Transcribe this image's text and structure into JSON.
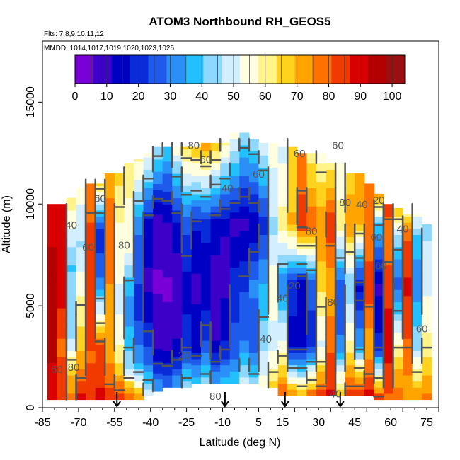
{
  "chart_data": {
    "type": "heatmap",
    "title": "ATOM3 Northbound RH_GEOS5",
    "subtitle_flights": "Flts: 7,8,9,10,11,12",
    "subtitle_dates": "MMDD: 1014,1017,1019,1020,1023,1025",
    "xlabel": "Latitude (deg N)",
    "ylabel": "Altitude (m)",
    "xlim": [
      -85,
      80
    ],
    "ylim": [
      0,
      18000
    ],
    "x_ticks": [
      -85,
      -70,
      -55,
      -40,
      -25,
      -10,
      5,
      15,
      30,
      45,
      60,
      75
    ],
    "y_ticks": [
      0,
      5000,
      10000,
      15000
    ],
    "colorbar": {
      "min": 0,
      "max": 104,
      "ticks": [
        0,
        10,
        20,
        30,
        40,
        50,
        60,
        70,
        80,
        90,
        100
      ],
      "colors": [
        "#7A00D8",
        "#3C00C8",
        "#0000C4",
        "#0A2CD8",
        "#1E5BEB",
        "#2A8FF6",
        "#22C0FF",
        "#8ED8FF",
        "#D2EEFF",
        "#FFFFE0",
        "#FFF38A",
        "#FFD21E",
        "#FFA400",
        "#FF7200",
        "#F03A00",
        "#D80000",
        "#B30000",
        "#9A1010"
      ]
    },
    "contour_labels": [
      "80",
      "60",
      "60",
      "40",
      "60",
      "80",
      "60",
      "60",
      "40",
      "60",
      "80",
      "80",
      "40",
      "40",
      "20",
      "40",
      "20",
      "40",
      "60",
      "60",
      "60",
      "80",
      "60",
      "80",
      "80",
      "20",
      "40"
    ],
    "marker_latitudes": [
      -54,
      -9,
      16,
      39
    ],
    "columns": [
      {
        "lat": -81,
        "bottom": 400,
        "top": 10000,
        "profile": [
          [
            400,
            90
          ],
          [
            1500,
            92
          ],
          [
            6000,
            95
          ],
          [
            10000,
            90
          ]
        ]
      },
      {
        "lat": -77,
        "bottom": 400,
        "top": 10000,
        "profile": [
          [
            400,
            85
          ],
          [
            3000,
            80
          ],
          [
            6000,
            90
          ],
          [
            10000,
            88
          ]
        ]
      },
      {
        "lat": -73,
        "bottom": 400,
        "top": 10300,
        "profile": [
          [
            400,
            78
          ],
          [
            1500,
            70
          ],
          [
            3500,
            45
          ],
          [
            7000,
            40
          ],
          [
            10300,
            62
          ]
        ]
      },
      {
        "lat": -69,
        "bottom": 400,
        "top": 10800,
        "profile": [
          [
            400,
            88
          ],
          [
            2500,
            70
          ],
          [
            5000,
            60
          ],
          [
            8000,
            45
          ],
          [
            10800,
            55
          ]
        ]
      },
      {
        "lat": -65,
        "bottom": 400,
        "top": 11000,
        "profile": [
          [
            400,
            85
          ],
          [
            2500,
            80
          ],
          [
            5000,
            85
          ],
          [
            8000,
            85
          ],
          [
            11000,
            75
          ]
        ]
      },
      {
        "lat": -61,
        "bottom": 400,
        "top": 11000,
        "profile": [
          [
            400,
            88
          ],
          [
            3000,
            82
          ],
          [
            6000,
            30
          ],
          [
            8500,
            20
          ],
          [
            11000,
            65
          ]
        ]
      },
      {
        "lat": -57,
        "bottom": 400,
        "top": 11500,
        "profile": [
          [
            400,
            85
          ],
          [
            3000,
            70
          ],
          [
            6000,
            75
          ],
          [
            9000,
            80
          ],
          [
            11500,
            70
          ]
        ]
      },
      {
        "lat": -53,
        "bottom": 400,
        "top": 11500,
        "profile": [
          [
            400,
            85
          ],
          [
            2500,
            60
          ],
          [
            5000,
            50
          ],
          [
            8000,
            55
          ],
          [
            11500,
            65
          ]
        ]
      },
      {
        "lat": -49,
        "bottom": 400,
        "top": 12000,
        "profile": [
          [
            400,
            80
          ],
          [
            2000,
            45
          ],
          [
            5000,
            30
          ],
          [
            8000,
            55
          ],
          [
            12000,
            60
          ]
        ]
      },
      {
        "lat": -45,
        "bottom": 400,
        "top": 12200,
        "profile": [
          [
            400,
            75
          ],
          [
            2000,
            35
          ],
          [
            5000,
            20
          ],
          [
            9000,
            30
          ],
          [
            12200,
            60
          ]
        ]
      },
      {
        "lat": -41,
        "bottom": 600,
        "top": 12500,
        "profile": [
          [
            600,
            50
          ],
          [
            2500,
            25
          ],
          [
            6000,
            10
          ],
          [
            9000,
            15
          ],
          [
            12500,
            55
          ]
        ]
      },
      {
        "lat": -37,
        "bottom": 800,
        "top": 12800,
        "profile": [
          [
            800,
            35
          ],
          [
            3000,
            10
          ],
          [
            6000,
            5
          ],
          [
            9000,
            8
          ],
          [
            12800,
            45
          ]
        ]
      },
      {
        "lat": -33,
        "bottom": 1000,
        "top": 12800,
        "profile": [
          [
            1000,
            30
          ],
          [
            3000,
            8
          ],
          [
            6000,
            5
          ],
          [
            9000,
            10
          ],
          [
            12800,
            40
          ]
        ]
      },
      {
        "lat": -29,
        "bottom": 1000,
        "top": 12800,
        "profile": [
          [
            1000,
            35
          ],
          [
            3000,
            12
          ],
          [
            6000,
            8
          ],
          [
            9000,
            15
          ],
          [
            12800,
            55
          ]
        ]
      },
      {
        "lat": -25,
        "bottom": 1000,
        "top": 12800,
        "profile": [
          [
            1000,
            45
          ],
          [
            3000,
            20
          ],
          [
            6000,
            15
          ],
          [
            9000,
            25
          ],
          [
            12800,
            65
          ]
        ]
      },
      {
        "lat": -21,
        "bottom": 1200,
        "top": 12800,
        "profile": [
          [
            1200,
            40
          ],
          [
            3000,
            15
          ],
          [
            6000,
            10
          ],
          [
            9000,
            18
          ],
          [
            12800,
            70
          ]
        ]
      },
      {
        "lat": -17,
        "bottom": 1200,
        "top": 13000,
        "profile": [
          [
            1200,
            45
          ],
          [
            3000,
            25
          ],
          [
            6000,
            12
          ],
          [
            9000,
            20
          ],
          [
            13000,
            75
          ]
        ]
      },
      {
        "lat": -13,
        "bottom": 1200,
        "top": 13000,
        "profile": [
          [
            1200,
            35
          ],
          [
            3000,
            12
          ],
          [
            6000,
            8
          ],
          [
            9000,
            15
          ],
          [
            13000,
            70
          ]
        ]
      },
      {
        "lat": -9,
        "bottom": 1200,
        "top": 13000,
        "profile": [
          [
            1200,
            38
          ],
          [
            3000,
            18
          ],
          [
            6000,
            10
          ],
          [
            9000,
            12
          ],
          [
            13000,
            60
          ]
        ]
      },
      {
        "lat": -5,
        "bottom": 1200,
        "top": 13500,
        "profile": [
          [
            1200,
            40
          ],
          [
            3000,
            25
          ],
          [
            6000,
            20
          ],
          [
            9000,
            10
          ],
          [
            13500,
            55
          ]
        ]
      },
      {
        "lat": -1,
        "bottom": 1200,
        "top": 13500,
        "profile": [
          [
            1200,
            50
          ],
          [
            3000,
            30
          ],
          [
            6000,
            22
          ],
          [
            9000,
            10
          ],
          [
            13500,
            45
          ]
        ]
      },
      {
        "lat": 3,
        "bottom": 1200,
        "top": 13200,
        "profile": [
          [
            1200,
            45
          ],
          [
            3000,
            25
          ],
          [
            6000,
            30
          ],
          [
            9000,
            12
          ],
          [
            13200,
            45
          ]
        ]
      },
      {
        "lat": 7,
        "bottom": 1000,
        "top": 13000,
        "profile": [
          [
            1000,
            55
          ],
          [
            3000,
            45
          ],
          [
            6000,
            35
          ],
          [
            9000,
            20
          ],
          [
            13000,
            50
          ]
        ]
      },
      {
        "lat": 11,
        "bottom": 1000,
        "top": 13000,
        "profile": [
          [
            1000,
            65
          ],
          [
            3000,
            50
          ],
          [
            6000,
            55
          ],
          [
            9000,
            45
          ],
          [
            13000,
            55
          ]
        ]
      },
      {
        "lat": 15,
        "bottom": 600,
        "top": 12800,
        "profile": [
          [
            600,
            80
          ],
          [
            3000,
            55
          ],
          [
            6000,
            30
          ],
          [
            9000,
            60
          ],
          [
            12800,
            50
          ]
        ]
      },
      {
        "lat": 19,
        "bottom": 600,
        "top": 12800,
        "profile": [
          [
            600,
            75
          ],
          [
            3000,
            15
          ],
          [
            6000,
            20
          ],
          [
            9000,
            70
          ],
          [
            12800,
            65
          ]
        ]
      },
      {
        "lat": 23,
        "bottom": 600,
        "top": 12500,
        "profile": [
          [
            600,
            70
          ],
          [
            3000,
            15
          ],
          [
            6000,
            12
          ],
          [
            9000,
            85
          ],
          [
            12500,
            75
          ]
        ]
      },
      {
        "lat": 27,
        "bottom": 600,
        "top": 12500,
        "profile": [
          [
            600,
            80
          ],
          [
            3000,
            20
          ],
          [
            6000,
            25
          ],
          [
            9000,
            80
          ],
          [
            12500,
            60
          ]
        ]
      },
      {
        "lat": 31,
        "bottom": 600,
        "top": 12500,
        "profile": [
          [
            600,
            85
          ],
          [
            3000,
            50
          ],
          [
            6000,
            65
          ],
          [
            9000,
            75
          ],
          [
            12500,
            55
          ]
        ]
      },
      {
        "lat": 35,
        "bottom": 600,
        "top": 12000,
        "profile": [
          [
            600,
            88
          ],
          [
            3000,
            80
          ],
          [
            6000,
            70
          ],
          [
            9000,
            85
          ],
          [
            12000,
            60
          ]
        ]
      },
      {
        "lat": 39,
        "bottom": 600,
        "top": 12000,
        "profile": [
          [
            600,
            70
          ],
          [
            3000,
            30
          ],
          [
            6000,
            25
          ],
          [
            9000,
            60
          ],
          [
            12000,
            55
          ]
        ]
      },
      {
        "lat": 43,
        "bottom": 600,
        "top": 11500,
        "profile": [
          [
            600,
            85
          ],
          [
            3000,
            60
          ],
          [
            6000,
            40
          ],
          [
            9000,
            75
          ],
          [
            11500,
            65
          ]
        ]
      },
      {
        "lat": 47,
        "bottom": 600,
        "top": 11500,
        "profile": [
          [
            600,
            90
          ],
          [
            3000,
            35
          ],
          [
            6000,
            15
          ],
          [
            9000,
            70
          ],
          [
            11500,
            70
          ]
        ]
      },
      {
        "lat": 51,
        "bottom": 600,
        "top": 11000,
        "profile": [
          [
            600,
            88
          ],
          [
            3000,
            70
          ],
          [
            6000,
            85
          ],
          [
            9000,
            75
          ],
          [
            11000,
            80
          ]
        ]
      },
      {
        "lat": 55,
        "bottom": 400,
        "top": 10500,
        "profile": [
          [
            400,
            85
          ],
          [
            3000,
            20
          ],
          [
            6000,
            10
          ],
          [
            9000,
            40
          ],
          [
            10500,
            75
          ]
        ]
      },
      {
        "lat": 59,
        "bottom": 400,
        "top": 10000,
        "profile": [
          [
            400,
            80
          ],
          [
            3000,
            90
          ],
          [
            6000,
            85
          ],
          [
            8500,
            75
          ],
          [
            10000,
            85
          ]
        ]
      },
      {
        "lat": 63,
        "bottom": 400,
        "top": 9800,
        "profile": [
          [
            400,
            80
          ],
          [
            3000,
            60
          ],
          [
            6000,
            25
          ],
          [
            8500,
            45
          ],
          [
            9800,
            70
          ]
        ]
      },
      {
        "lat": 67,
        "bottom": 400,
        "top": 9500,
        "profile": [
          [
            400,
            70
          ],
          [
            3000,
            80
          ],
          [
            6000,
            88
          ],
          [
            8500,
            80
          ],
          [
            9500,
            60
          ]
        ]
      },
      {
        "lat": 71,
        "bottom": 400,
        "top": 9500,
        "profile": [
          [
            400,
            75
          ],
          [
            3000,
            45
          ],
          [
            6000,
            30
          ],
          [
            8500,
            40
          ],
          [
            9500,
            55
          ]
        ]
      },
      {
        "lat": 75,
        "bottom": 400,
        "top": 9000,
        "profile": [
          [
            400,
            78
          ],
          [
            3000,
            60
          ],
          [
            6000,
            50
          ],
          [
            9000,
            45
          ]
        ]
      }
    ]
  }
}
